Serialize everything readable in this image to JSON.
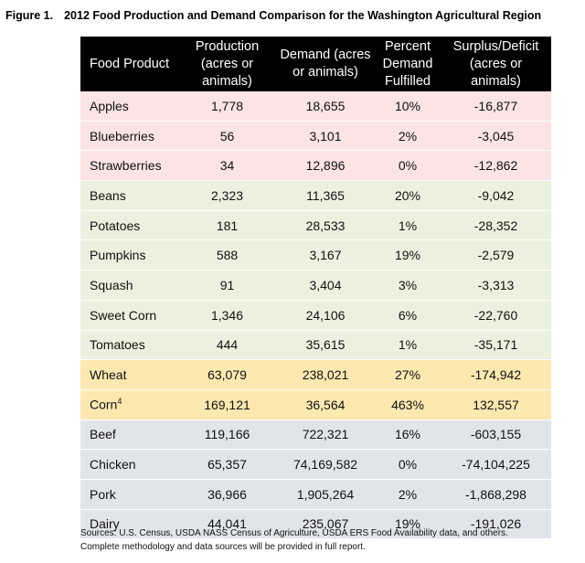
{
  "header": {
    "figure": "Figure 1.",
    "title": "2012 Food Production and Demand Comparison for the Washington Agricultural Region"
  },
  "table": {
    "columns": [
      "Food Product",
      "Production (acres or animals)",
      "Demand (acres or animals)",
      "Percent Demand Fulfilled",
      "Surplus/Deficit (acres or animals)"
    ],
    "rows": [
      [
        "Apples",
        "1,778",
        "18,655",
        "10%",
        "-16,877"
      ],
      [
        "Blueberries",
        "56",
        "3,101",
        "2%",
        "-3,045"
      ],
      [
        "Strawberries",
        "34",
        "12,896",
        "0%",
        "-12,862"
      ],
      [
        "Beans",
        "2,323",
        "11,365",
        "20%",
        "-9,042"
      ],
      [
        "Potatoes",
        "181",
        "28,533",
        "1%",
        "-28,352"
      ],
      [
        "Pumpkins",
        "588",
        "3,167",
        "19%",
        "-2,579"
      ],
      [
        "Squash",
        "91",
        "3,404",
        "3%",
        "-3,313"
      ],
      [
        "Sweet Corn",
        "1,346",
        "24,106",
        "6%",
        "-22,760"
      ],
      [
        "Tomatoes",
        "444",
        "35,615",
        "1%",
        "-35,171"
      ],
      [
        "Wheat",
        "63,079",
        "238,021",
        "27%",
        "-174,942"
      ],
      [
        "Corn",
        "169,121",
        "36,564",
        "463%",
        "132,557"
      ],
      [
        "Beef",
        "119,166",
        "722,321",
        "16%",
        "-603,155"
      ],
      [
        "Chicken",
        "65,357",
        "74,169,582",
        "0%",
        "-74,104,225"
      ],
      [
        "Pork",
        "36,966",
        "1,905,264",
        "2%",
        "-1,868,298"
      ],
      [
        "Dairy",
        "44,041",
        "235,067",
        "19%",
        "-191,026"
      ]
    ],
    "footnote_marks": {
      "10": "4"
    }
  },
  "sources": [
    "Sources: U.S. Census, USDA NASS Census of Agriculture, USDA ERS Food Availability data, and others.",
    "Complete methodology and data sources will be provided in full report."
  ]
}
